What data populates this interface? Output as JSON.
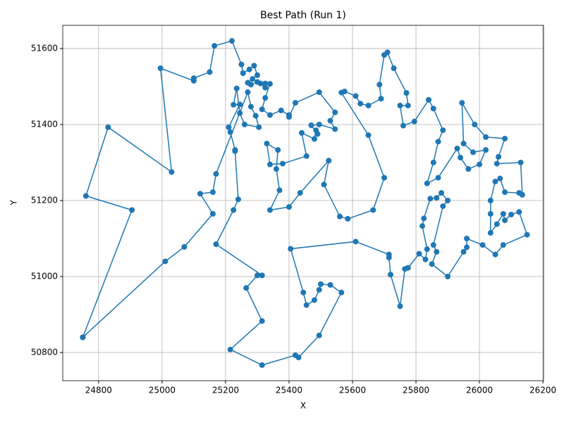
{
  "chart_data": {
    "type": "line",
    "title": "Best Path (Run 1)",
    "x_label": "X",
    "y_label": "Y",
    "xlim": [
      24687,
      26202
    ],
    "ylim": [
      50726,
      51661
    ],
    "xticks": [
      24800,
      25000,
      25200,
      25400,
      25600,
      25800,
      26000,
      26200
    ],
    "yticks": [
      50800,
      51000,
      51200,
      51400,
      51600
    ],
    "grid": true,
    "series": [
      {
        "color": "#1f77b4",
        "x": [
          24750,
          24905,
          24760,
          24830,
          25030,
          24995,
          25100,
          25100,
          25150,
          25165,
          25220,
          25250,
          25255,
          25275,
          25290,
          25300,
          25285,
          25270,
          25280,
          25300,
          25310,
          25325,
          25325,
          25340,
          25325,
          25315,
          25340,
          25375,
          25400,
          25400,
          25420,
          25495,
          25545,
          25530,
          25545,
          25495,
          25470,
          25490,
          25485,
          25480,
          25440,
          25455,
          25380,
          25340,
          25330,
          25365,
          25360,
          25370,
          25340,
          25400,
          25435,
          25525,
          25510,
          25560,
          25585,
          25665,
          25700,
          25650,
          25565,
          25575,
          25610,
          25625,
          25650,
          25690,
          25685,
          25700,
          25710,
          25730,
          25770,
          25775,
          25750,
          25760,
          25795,
          25840,
          25855,
          25885,
          25870,
          25855,
          25835,
          25870,
          25930,
          25940,
          25965,
          26000,
          26020,
          25980,
          25950,
          25945,
          25985,
          26020,
          26080,
          26060,
          26055,
          26130,
          26135,
          26125,
          26080,
          26065,
          26050,
          26035,
          26035,
          26035,
          26055,
          26075,
          26080,
          26100,
          26125,
          26150,
          26075,
          26050,
          26010,
          25960,
          25960,
          25950,
          25900,
          25850,
          25865,
          25855,
          25885,
          25900,
          25880,
          25865,
          25845,
          25825,
          25820,
          25835,
          25830,
          25810,
          25775,
          25765,
          25750,
          25720,
          25715,
          25715,
          25610,
          25405,
          25445,
          25455,
          25480,
          25495,
          25500,
          25530,
          25565,
          25495,
          25430,
          25420,
          25315,
          25215,
          25315,
          25265,
          25300,
          25315,
          25170,
          25225,
          25240,
          25230,
          25230,
          25215,
          25210,
          25245,
          25225,
          25235,
          25245,
          25260,
          25305,
          25295,
          25280,
          25270,
          25170,
          25160,
          25120,
          25160,
          25070,
          25010,
          24750
        ],
        "values": [
          50840,
          51175,
          51212,
          51393,
          51275,
          51548,
          51515,
          51522,
          51538,
          51607,
          51620,
          51558,
          51535,
          51545,
          51555,
          51530,
          51520,
          51510,
          51505,
          51512,
          51508,
          51497,
          51508,
          51507,
          51470,
          51440,
          51425,
          51437,
          51425,
          51420,
          51457,
          51485,
          51432,
          51410,
          51388,
          51400,
          51398,
          51375,
          51385,
          51362,
          51378,
          51317,
          51297,
          51295,
          51350,
          51333,
          51283,
          51227,
          51175,
          51183,
          51220,
          51305,
          51242,
          51158,
          51152,
          51175,
          51260,
          51372,
          51484,
          51487,
          51475,
          51455,
          51450,
          51468,
          51505,
          51583,
          51590,
          51548,
          51483,
          51450,
          51450,
          51397,
          51408,
          51465,
          51442,
          51385,
          51355,
          51300,
          51245,
          51260,
          51337,
          51313,
          51283,
          51295,
          51333,
          51327,
          51350,
          51457,
          51400,
          51367,
          51363,
          51315,
          51297,
          51300,
          51215,
          51220,
          51222,
          51258,
          51250,
          51200,
          51165,
          51115,
          51138,
          51165,
          51148,
          51163,
          51170,
          51110,
          51083,
          51058,
          51083,
          51100,
          51077,
          51065,
          51000,
          51033,
          51065,
          51083,
          51185,
          51200,
          51220,
          51207,
          51205,
          51153,
          51133,
          51072,
          51045,
          51060,
          51023,
          51020,
          50922,
          51005,
          51050,
          51058,
          51092,
          51073,
          50958,
          50925,
          50938,
          50965,
          50980,
          50978,
          50958,
          50845,
          50787,
          50793,
          50767,
          50808,
          50883,
          50970,
          51003,
          51003,
          51085,
          51175,
          51203,
          51330,
          51333,
          51380,
          51393,
          51453,
          51452,
          51495,
          51430,
          51400,
          51393,
          51423,
          51447,
          51485,
          51270,
          51222,
          51218,
          51165,
          51078,
          51040,
          50840
        ]
      }
    ]
  }
}
